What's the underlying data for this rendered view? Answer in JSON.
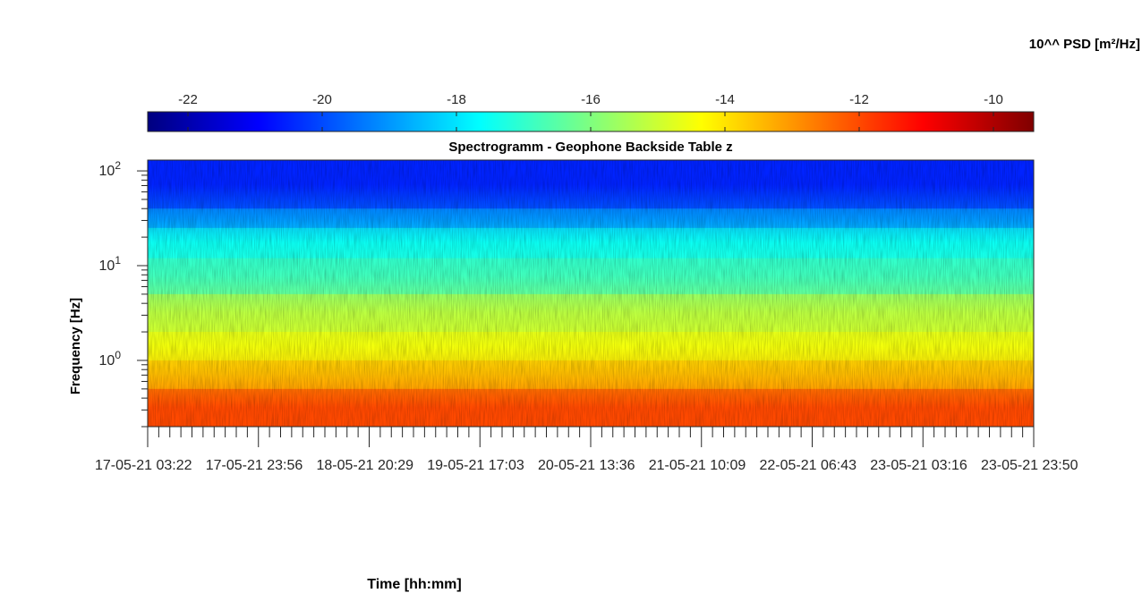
{
  "colorbar": {
    "title": "10^^ PSD [m²/Hz]",
    "ticks": [
      -22,
      -20,
      -18,
      -16,
      -14,
      -12,
      -10
    ],
    "range": [
      -22.6,
      -9.4
    ],
    "colormap": "jet",
    "colors": [
      "#00007f",
      "#0000ff",
      "#007fff",
      "#00ffff",
      "#7fff7f",
      "#ffff00",
      "#ff7f00",
      "#ff0000",
      "#7f0000"
    ]
  },
  "chart_data": {
    "type": "heatmap",
    "title": "Spectrogramm - Geophone Backside Table z",
    "xlabel": "Time [hh:mm]",
    "ylabel": "Frequency [Hz]",
    "y_scale": "log",
    "ylim": [
      0.2,
      130
    ],
    "y_ticks": [
      {
        "value": 1,
        "base": "10",
        "exp": "0"
      },
      {
        "value": 10,
        "base": "10",
        "exp": "1"
      },
      {
        "value": 100,
        "base": "10",
        "exp": "2"
      }
    ],
    "x_ticks": [
      {
        "date": "17-05-21",
        "time": "03:22"
      },
      {
        "date": "17-05-21",
        "time": "23:56"
      },
      {
        "date": "18-05-21",
        "time": "20:29"
      },
      {
        "date": "19-05-21",
        "time": "17:03"
      },
      {
        "date": "20-05-21",
        "time": "13:36"
      },
      {
        "date": "21-05-21",
        "time": "10:09"
      },
      {
        "date": "22-05-21",
        "time": "06:43"
      },
      {
        "date": "23-05-21",
        "time": "03:16"
      },
      {
        "date": "23-05-21",
        "time": "23:50"
      }
    ],
    "bands": [
      {
        "f_min": 40,
        "f_max": 130,
        "psd": -20.5
      },
      {
        "f_min": 25,
        "f_max": 40,
        "psd": -19.0
      },
      {
        "f_min": 12,
        "f_max": 25,
        "psd": -17.5
      },
      {
        "f_min": 5,
        "f_max": 12,
        "psd": -16.8
      },
      {
        "f_min": 2,
        "f_max": 5,
        "psd": -15.2
      },
      {
        "f_min": 1,
        "f_max": 2,
        "psd": -14.5
      },
      {
        "f_min": 0.5,
        "f_max": 1,
        "psd": -13.5
      },
      {
        "f_min": 0.2,
        "f_max": 0.5,
        "psd": -12.0
      }
    ]
  }
}
